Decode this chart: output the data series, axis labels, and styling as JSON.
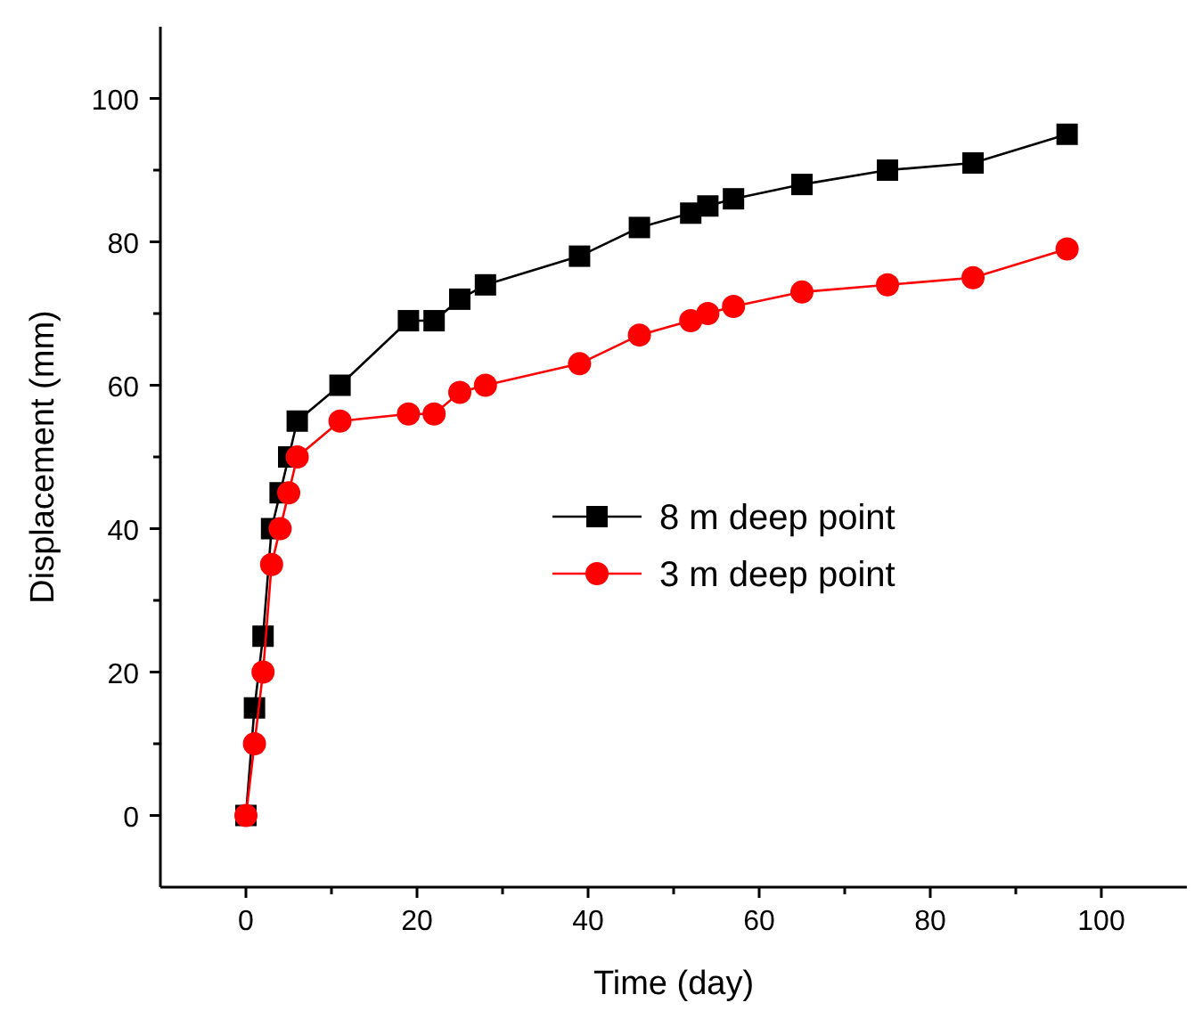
{
  "chart_data": {
    "type": "line",
    "xlabel": "Time (day)",
    "ylabel": "Displacement (mm)",
    "xlim": [
      -10,
      110
    ],
    "ylim": [
      -10,
      110
    ],
    "xticks": [
      0,
      {
        "value": 10,
        "label": null
      },
      20,
      {
        "value": 30,
        "label": null
      },
      40,
      {
        "value": 50,
        "label": null
      },
      60,
      {
        "value": 70,
        "label": null
      },
      80,
      {
        "value": 90,
        "label": null
      },
      100
    ],
    "yticks": [
      0,
      {
        "value": 10,
        "label": null
      },
      20,
      {
        "value": 30,
        "label": null
      },
      40,
      {
        "value": 50,
        "label": null
      },
      60,
      {
        "value": 70,
        "label": null
      },
      80,
      {
        "value": 90,
        "label": null
      },
      100
    ],
    "grid": false,
    "legend": "right",
    "x": [
      0,
      1,
      2,
      3,
      4,
      5,
      6,
      11,
      19,
      22,
      25,
      28,
      39,
      46,
      52,
      54,
      57,
      65,
      75,
      85,
      96
    ],
    "series": [
      {
        "name": "8 m deep point",
        "color": "#000000",
        "marker": "square",
        "values": [
          0,
          15,
          25,
          40,
          45,
          50,
          55,
          60,
          69,
          69,
          72,
          74,
          78,
          82,
          84,
          85,
          86,
          88,
          90,
          91,
          95
        ]
      },
      {
        "name": "3 m deep point",
        "color": "#ff0000",
        "marker": "circle",
        "values": [
          0,
          10,
          20,
          35,
          40,
          45,
          50,
          55,
          56,
          56,
          59,
          60,
          63,
          67,
          69,
          70,
          71,
          73,
          74,
          75,
          79
        ]
      }
    ]
  }
}
